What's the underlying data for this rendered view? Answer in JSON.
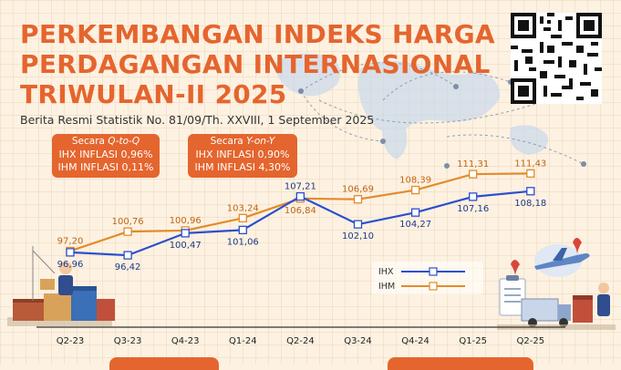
{
  "title_lines": [
    "PERKEMBANGAN INDEKS HARGA",
    "PERDAGANGAN INTERNASIONAL",
    "TRIWULAN-II 2025"
  ],
  "subtitle": "Berita Resmi Statistik No. 81/09/Th. XXVIII, 1 September 2025",
  "qtoq_box": {
    "head_prefix": "Secara ",
    "head_italic": "Q-to-Q",
    "line1": "IHX INFLASI 0,96%",
    "line2": "IHM INFLASI 0,11%"
  },
  "yony_box": {
    "head_prefix": "Secara ",
    "head_italic": "Y-on-Y",
    "line1": "IHX INFLASI 0,90%",
    "line2": "IHM INFLASI 4,30%"
  },
  "colors": {
    "accent": "#e5652e",
    "ihx": "#2b4fcf",
    "ihm": "#e38b2a",
    "background": "#fdf1e1"
  },
  "icons": [
    "qr-code-icon",
    "world-map-icon",
    "warehouse-worker-icon",
    "truck-airplane-icon"
  ],
  "chart_data": {
    "type": "line",
    "categories": [
      "Q2-23",
      "Q3-23",
      "Q4-23",
      "Q1-24",
      "Q2-24",
      "Q3-24",
      "Q4-24",
      "Q1-25",
      "Q2-25"
    ],
    "series": [
      {
        "name": "IHX",
        "values": [
          96.96,
          96.42,
          100.47,
          101.06,
          107.21,
          102.1,
          104.27,
          107.16,
          108.18
        ],
        "labels": [
          "96,96",
          "96,42",
          "100,47",
          "101,06",
          "107,21",
          "102,10",
          "104,27",
          "107,16",
          "108,18"
        ]
      },
      {
        "name": "IHM",
        "values": [
          97.2,
          100.76,
          100.96,
          103.24,
          106.84,
          106.69,
          108.39,
          111.31,
          111.43
        ],
        "labels": [
          "97,20",
          "100,76",
          "100,96",
          "103,24",
          "106,84",
          "106,69",
          "108,39",
          "111,31",
          "111,43"
        ]
      }
    ],
    "legend": "bottom-right",
    "grid": false
  }
}
